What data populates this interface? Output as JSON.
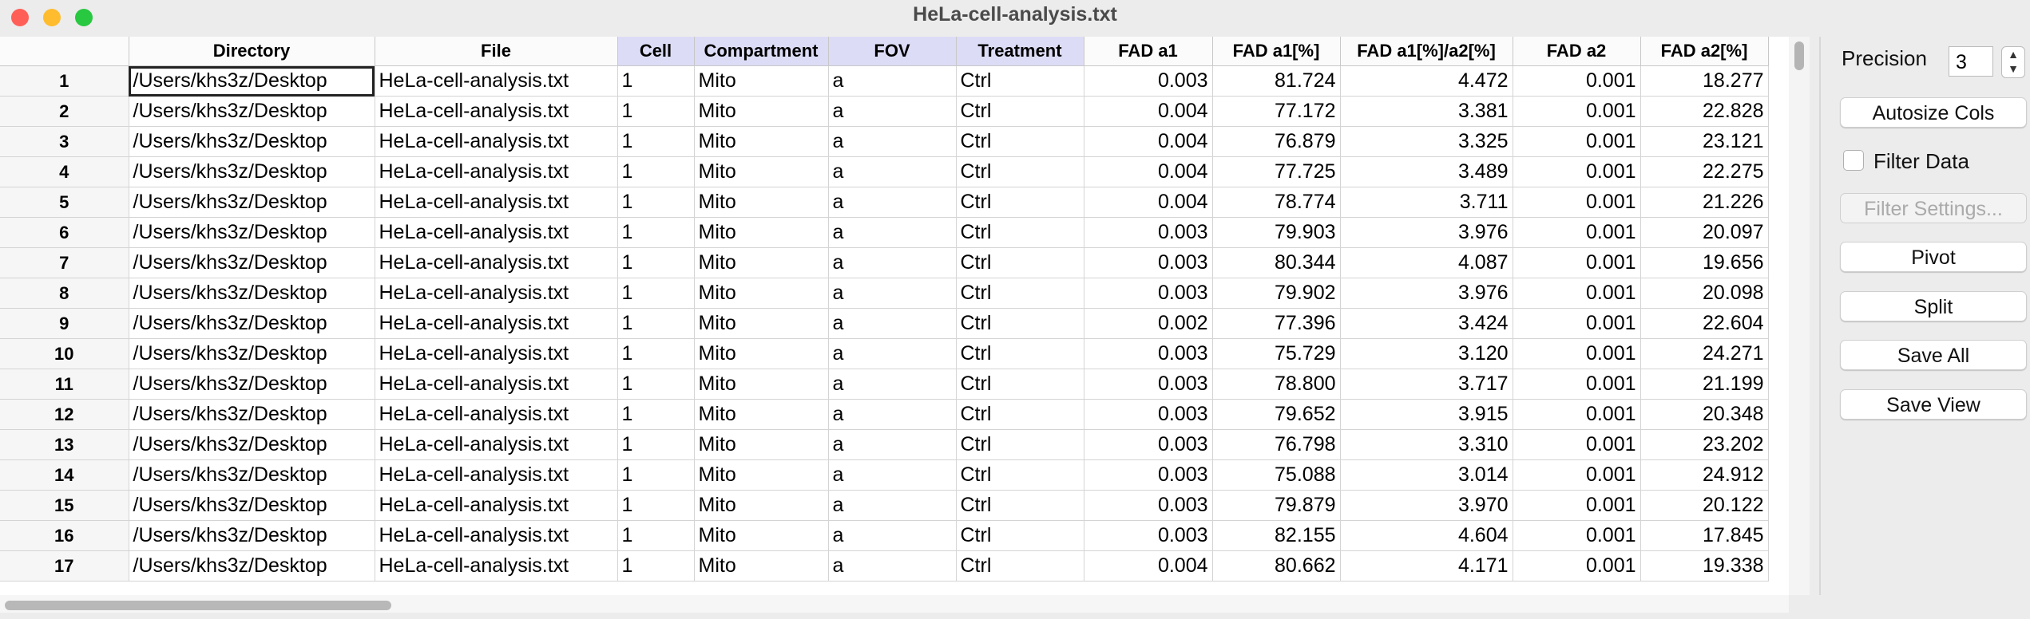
{
  "window": {
    "title": "HeLa-cell-analysis.txt"
  },
  "colors": {
    "close": "#ff5f57",
    "minimize": "#febc2e",
    "zoom": "#28c840",
    "selected_header": "#dcdcf6"
  },
  "table": {
    "columns": [
      "Directory",
      "File",
      "Cell",
      "Compartment",
      "FOV",
      "Treatment",
      "FAD a1",
      "FAD a1[%]",
      "FAD a1[%]/a2[%]",
      "FAD a2",
      "FAD a2[%]"
    ],
    "rows": [
      [
        "1",
        "/Users/khs3z/Desktop",
        "HeLa-cell-analysis.txt",
        "1",
        "Mito",
        "a",
        "Ctrl",
        "0.003",
        "81.724",
        "4.472",
        "0.001",
        "18.277"
      ],
      [
        "2",
        "/Users/khs3z/Desktop",
        "HeLa-cell-analysis.txt",
        "1",
        "Mito",
        "a",
        "Ctrl",
        "0.004",
        "77.172",
        "3.381",
        "0.001",
        "22.828"
      ],
      [
        "3",
        "/Users/khs3z/Desktop",
        "HeLa-cell-analysis.txt",
        "1",
        "Mito",
        "a",
        "Ctrl",
        "0.004",
        "76.879",
        "3.325",
        "0.001",
        "23.121"
      ],
      [
        "4",
        "/Users/khs3z/Desktop",
        "HeLa-cell-analysis.txt",
        "1",
        "Mito",
        "a",
        "Ctrl",
        "0.004",
        "77.725",
        "3.489",
        "0.001",
        "22.275"
      ],
      [
        "5",
        "/Users/khs3z/Desktop",
        "HeLa-cell-analysis.txt",
        "1",
        "Mito",
        "a",
        "Ctrl",
        "0.004",
        "78.774",
        "3.711",
        "0.001",
        "21.226"
      ],
      [
        "6",
        "/Users/khs3z/Desktop",
        "HeLa-cell-analysis.txt",
        "1",
        "Mito",
        "a",
        "Ctrl",
        "0.003",
        "79.903",
        "3.976",
        "0.001",
        "20.097"
      ],
      [
        "7",
        "/Users/khs3z/Desktop",
        "HeLa-cell-analysis.txt",
        "1",
        "Mito",
        "a",
        "Ctrl",
        "0.003",
        "80.344",
        "4.087",
        "0.001",
        "19.656"
      ],
      [
        "8",
        "/Users/khs3z/Desktop",
        "HeLa-cell-analysis.txt",
        "1",
        "Mito",
        "a",
        "Ctrl",
        "0.003",
        "79.902",
        "3.976",
        "0.001",
        "20.098"
      ],
      [
        "9",
        "/Users/khs3z/Desktop",
        "HeLa-cell-analysis.txt",
        "1",
        "Mito",
        "a",
        "Ctrl",
        "0.002",
        "77.396",
        "3.424",
        "0.001",
        "22.604"
      ],
      [
        "10",
        "/Users/khs3z/Desktop",
        "HeLa-cell-analysis.txt",
        "1",
        "Mito",
        "a",
        "Ctrl",
        "0.003",
        "75.729",
        "3.120",
        "0.001",
        "24.271"
      ],
      [
        "11",
        "/Users/khs3z/Desktop",
        "HeLa-cell-analysis.txt",
        "1",
        "Mito",
        "a",
        "Ctrl",
        "0.003",
        "78.800",
        "3.717",
        "0.001",
        "21.199"
      ],
      [
        "12",
        "/Users/khs3z/Desktop",
        "HeLa-cell-analysis.txt",
        "1",
        "Mito",
        "a",
        "Ctrl",
        "0.003",
        "79.652",
        "3.915",
        "0.001",
        "20.348"
      ],
      [
        "13",
        "/Users/khs3z/Desktop",
        "HeLa-cell-analysis.txt",
        "1",
        "Mito",
        "a",
        "Ctrl",
        "0.003",
        "76.798",
        "3.310",
        "0.001",
        "23.202"
      ],
      [
        "14",
        "/Users/khs3z/Desktop",
        "HeLa-cell-analysis.txt",
        "1",
        "Mito",
        "a",
        "Ctrl",
        "0.003",
        "75.088",
        "3.014",
        "0.001",
        "24.912"
      ],
      [
        "15",
        "/Users/khs3z/Desktop",
        "HeLa-cell-analysis.txt",
        "1",
        "Mito",
        "a",
        "Ctrl",
        "0.003",
        "79.879",
        "3.970",
        "0.001",
        "20.122"
      ],
      [
        "16",
        "/Users/khs3z/Desktop",
        "HeLa-cell-analysis.txt",
        "1",
        "Mito",
        "a",
        "Ctrl",
        "0.003",
        "82.155",
        "4.604",
        "0.001",
        "17.845"
      ],
      [
        "17",
        "/Users/khs3z/Desktop",
        "HeLa-cell-analysis.txt",
        "1",
        "Mito",
        "a",
        "Ctrl",
        "0.004",
        "80.662",
        "4.171",
        "0.001",
        "19.338"
      ]
    ]
  },
  "sidebar": {
    "precision_label": "Precision",
    "precision_value": "3",
    "autosize_label": "Autosize Cols",
    "filter_data_label": "Filter Data",
    "filter_settings_label": "Filter Settings...",
    "pivot_label": "Pivot",
    "split_label": "Split",
    "save_all_label": "Save All",
    "save_view_label": "Save View"
  }
}
